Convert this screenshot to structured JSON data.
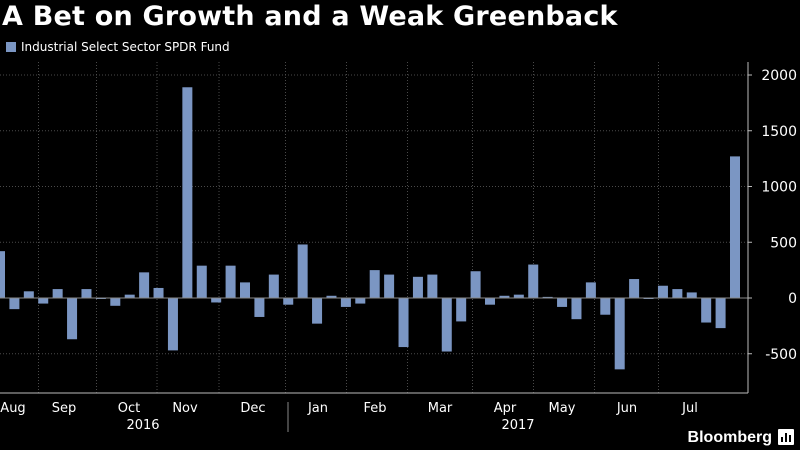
{
  "chart_data": {
    "type": "bar",
    "title": "A Bet on Growth and a Weak Greenback",
    "legend": {
      "position": "top-left"
    },
    "series": [
      {
        "name": "Industrial Select Sector SPDR Fund",
        "color": "#7b96c3"
      }
    ],
    "values": [
      420,
      -100,
      60,
      -50,
      80,
      -370,
      80,
      0,
      -70,
      30,
      230,
      90,
      -470,
      1890,
      290,
      -40,
      290,
      140,
      -170,
      210,
      -60,
      480,
      -230,
      20,
      -80,
      -50,
      250,
      210,
      -440,
      190,
      210,
      -480,
      -210,
      240,
      -60,
      20,
      30,
      300,
      10,
      -80,
      -190,
      140,
      -150,
      -640,
      170,
      0,
      110,
      80,
      50,
      -220,
      -270,
      1270
    ],
    "ylim": [
      -850,
      2120
    ],
    "yticks": [
      -500,
      0,
      500,
      1000,
      1500,
      2000
    ],
    "ytick_labels": [
      "-500",
      "0",
      "500",
      "1000",
      "1500",
      "2000"
    ],
    "month_labels": [
      "Aug",
      "Sep",
      "Oct",
      "Nov",
      "Dec",
      "Jan",
      "Feb",
      "Mar",
      "Apr",
      "May",
      "Jun",
      "Jul"
    ],
    "year_labels": [
      "2016",
      "2017"
    ],
    "grid": true
  },
  "brand": {
    "name": "Bloomberg"
  }
}
